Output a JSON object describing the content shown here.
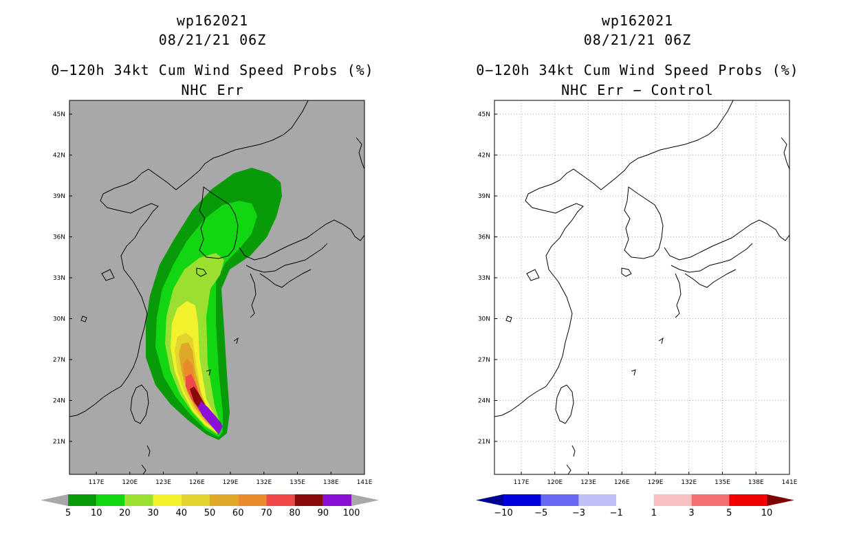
{
  "left_panel": {
    "title_storm": "wp162021",
    "title_time": "08/21/21 06Z",
    "title_product": "0−120h 34kt Cum Wind Speed Probs (%)",
    "title_sub": "NHC Err",
    "background": "#a8a8a8",
    "lat_labels": [
      "45N",
      "42N",
      "39N",
      "36N",
      "33N",
      "30N",
      "27N",
      "24N",
      "21N"
    ],
    "lon_labels": [
      "117E",
      "120E",
      "123E",
      "126E",
      "129E",
      "132E",
      "135E",
      "138E",
      "141E"
    ],
    "colorbar": {
      "labels": [
        "5",
        "10",
        "20",
        "30",
        "40",
        "50",
        "60",
        "70",
        "80",
        "90",
        "100"
      ],
      "colors": [
        "#089a08",
        "#13d613",
        "#9be030",
        "#f2f22c",
        "#e3d52d",
        "#e0a828",
        "#ea8a2b",
        "#f04848",
        "#8a0a0a",
        "#8a10d8"
      ],
      "end_low_color": "#a8a8a8",
      "end_high_color": "#a8a8a8"
    }
  },
  "right_panel": {
    "title_storm": "wp162021",
    "title_time": "08/21/21 06Z",
    "title_product": "0−120h 34kt Cum Wind Speed Probs (%)",
    "title_sub": "NHC Err − Control",
    "background": "#ffffff",
    "lat_labels": [
      "45N",
      "42N",
      "39N",
      "36N",
      "33N",
      "30N",
      "27N",
      "24N",
      "21N"
    ],
    "lon_labels": [
      "117E",
      "120E",
      "123E",
      "126E",
      "129E",
      "132E",
      "135E",
      "138E",
      "141E"
    ],
    "colorbar": {
      "labels": [
        "−10",
        "−5",
        "−3",
        "−1",
        "1",
        "3",
        "5",
        "10"
      ],
      "colors": [
        "#0000dd",
        "#6868f4",
        "#c0c0f8",
        "#ffffff",
        "#f8c0c0",
        "#f47070",
        "#f00000"
      ],
      "end_low_color": "#000090",
      "end_high_color": "#800000"
    }
  }
}
